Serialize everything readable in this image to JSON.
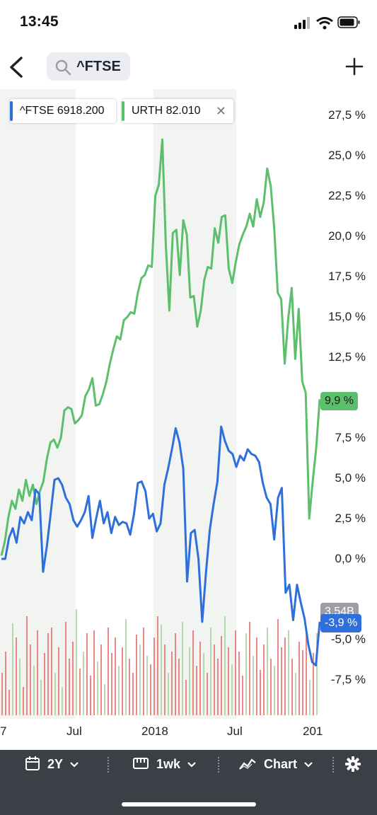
{
  "status": {
    "time": "13:45"
  },
  "nav": {
    "search_text": "^FTSE"
  },
  "legend": {
    "ftse": {
      "label": "^FTSE 6918.200",
      "color": "#2f6fdc"
    },
    "urth": {
      "label": "URTH 82.010",
      "color": "#5cbf6b",
      "close": "✕"
    }
  },
  "badges": {
    "urth_last": "9,9 %",
    "volume": "3.54B",
    "ftse_last": "-3,9 %"
  },
  "chart_data": {
    "type": "line",
    "ylabel_unit": "%",
    "ylim": [
      -10,
      28
    ],
    "y_ticks": [
      "27,5 %",
      "25,0 %",
      "22,5 %",
      "20,0 %",
      "17,5 %",
      "15,0 %",
      "12,5 %",
      "10,0 %",
      "7,5 %",
      "5,0 %",
      "2,5 %",
      "0,0 %",
      "-2,5 %",
      "-5,0 %",
      "-7,5 %"
    ],
    "x_ticks": [
      "7",
      "Jul",
      "2018",
      "Jul",
      "201"
    ],
    "grid": "shaded alternate half-years",
    "series": [
      {
        "name": "URTH",
        "color": "#5cbf6b",
        "values": [
          0.2,
          1.1,
          2.6,
          3.6,
          3.1,
          4.3,
          3.6,
          4.9,
          3.9,
          4.6,
          3.4,
          4.2,
          4.8,
          6.2,
          7.2,
          7.4,
          6.9,
          7.5,
          9.2,
          9.4,
          9.3,
          8.4,
          8.6,
          8.9,
          10.1,
          10.5,
          11.2,
          9.5,
          9.6,
          10.2,
          11.0,
          12.1,
          13.0,
          13.8,
          13.6,
          14.8,
          15.0,
          15.3,
          15.2,
          16.5,
          17.4,
          17.6,
          18.2,
          18.1,
          22.5,
          23.2,
          26.0,
          19.5,
          15.4,
          20.2,
          20.4,
          17.6,
          21.0,
          20.1,
          16.2,
          16.3,
          14.4,
          15.4,
          17.3,
          18.1,
          18.0,
          20.5,
          19.6,
          21.2,
          21.3,
          18.0,
          17.1,
          18.4,
          19.5,
          20.1,
          20.6,
          21.4,
          20.6,
          22.3,
          21.2,
          22.1,
          24.2,
          23.1,
          20.5,
          16.5,
          16.1,
          12.1,
          14.9,
          16.8,
          12.4,
          15.5,
          11.0,
          10.3,
          2.5,
          4.8,
          6.9,
          9.9
        ]
      },
      {
        "name": "^FTSE",
        "color": "#2f6fdc",
        "values": [
          0.0,
          0.0,
          1.3,
          1.9,
          1.0,
          2.6,
          2.2,
          2.9,
          2.4,
          4.3,
          4.0,
          -0.8,
          0.8,
          2.8,
          4.9,
          5.0,
          4.6,
          3.8,
          3.4,
          2.4,
          2.0,
          2.4,
          2.9,
          3.9,
          1.3,
          2.5,
          3.6,
          2.2,
          2.9,
          1.6,
          2.6,
          2.1,
          2.3,
          2.2,
          1.5,
          2.8,
          4.7,
          4.8,
          4.2,
          2.5,
          2.8,
          1.7,
          2.2,
          4.6,
          5.6,
          6.8,
          8.1,
          7.2,
          5.6,
          -1.4,
          1.6,
          1.8,
          0.0,
          -3.9,
          -0.8,
          1.8,
          3.4,
          4.8,
          8.2,
          7.3,
          6.7,
          6.5,
          5.7,
          6.4,
          6.1,
          6.8,
          6.5,
          6.4,
          6.0,
          4.7,
          3.8,
          3.4,
          1.2,
          3.8,
          4.4,
          -2.1,
          -1.6,
          -3.8,
          -1.6,
          -2.7,
          -3.7,
          -5.3,
          -6.4,
          -6.6,
          -3.9
        ]
      }
    ],
    "volume": {
      "label": "3.54B",
      "bars": [
        0.3,
        0.45,
        0.18,
        0.65,
        0.55,
        0.4,
        0.2,
        0.7,
        0.5,
        0.35,
        0.6,
        0.25,
        0.44,
        0.58,
        0.62,
        0.3,
        0.48,
        0.2,
        0.66,
        0.4,
        0.52,
        0.75,
        0.33,
        0.45,
        0.58,
        0.28,
        0.6,
        0.38,
        0.5,
        0.22,
        0.62,
        0.44,
        0.55,
        0.35,
        0.48,
        0.68,
        0.4,
        0.3,
        0.57,
        0.5,
        0.62,
        0.42,
        0.36,
        0.55,
        0.7,
        0.64,
        0.5,
        0.3,
        0.45,
        0.58,
        0.4,
        0.66,
        0.25,
        0.48,
        0.6,
        0.35,
        0.52,
        0.44,
        0.3,
        0.62,
        0.5,
        0.4,
        0.56,
        0.7,
        0.48,
        0.36,
        0.6,
        0.45,
        0.28,
        0.58,
        0.66,
        0.42,
        0.55,
        0.32,
        0.5,
        0.62,
        0.4,
        0.35,
        0.68,
        0.48,
        0.55,
        0.6,
        0.4,
        0.3,
        0.52,
        0.46,
        0.62,
        0.25,
        0.44,
        0.58
      ]
    }
  },
  "toolbar": {
    "range": "2Y",
    "interval": "1wk",
    "chart_type": "Chart"
  }
}
